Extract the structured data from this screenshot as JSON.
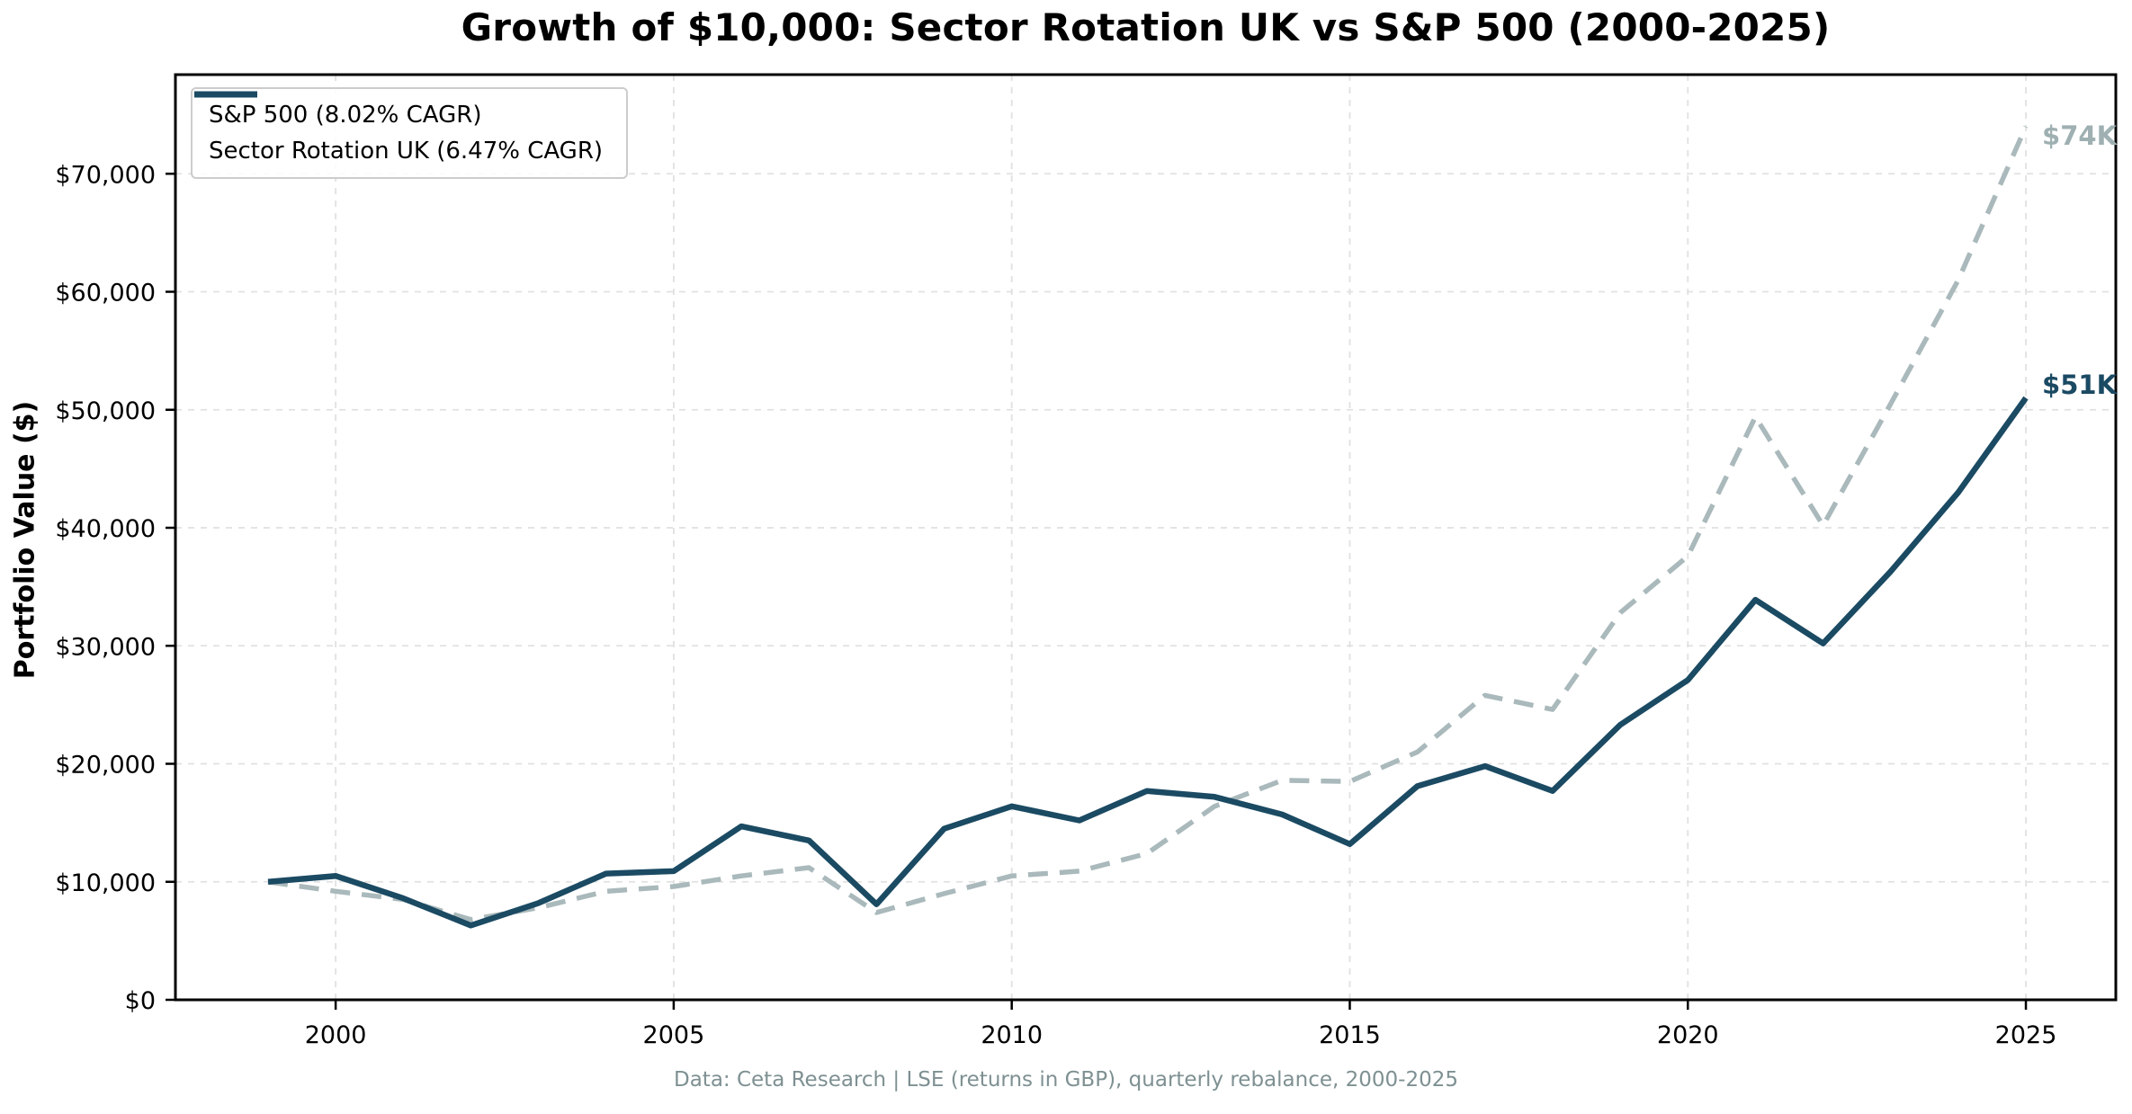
{
  "title": "Growth of $10,000: Sector Rotation UK vs S&P 500 (2000-2025)",
  "footer": {
    "text": "Data: Ceta Research | LSE (returns in GBP), quarterly rebalance, 2000-2025"
  },
  "colors": {
    "sp500_line": "#aab9bb",
    "sector_line": "#1b4a63",
    "gridline": "#e1e1e1",
    "axis": "#000000",
    "sp500_end_label": "#9fb0b2",
    "sector_end_label": "#1b4a63",
    "footer_text": "#7e9092",
    "legend_border": "#cccccc"
  },
  "chart_data": {
    "type": "line",
    "title": "Growth of $10,000: Sector Rotation UK vs S&P 500 (2000-2025)",
    "xlabel": "",
    "ylabel": "Portfolio Value ($)",
    "x": [
      1999,
      2000,
      2001,
      2002,
      2003,
      2004,
      2005,
      2006,
      2007,
      2008,
      2009,
      2010,
      2011,
      2012,
      2013,
      2014,
      2015,
      2016,
      2017,
      2018,
      2019,
      2020,
      2021,
      2022,
      2023,
      2024,
      2025
    ],
    "series": [
      {
        "name": "S&P 500 (8.02% CAGR)",
        "dash": true,
        "end_label": "$74K",
        "values": [
          10000,
          9200,
          8500,
          6800,
          7800,
          9200,
          9600,
          10500,
          11200,
          7400,
          9000,
          10500,
          10900,
          12400,
          16400,
          18600,
          18500,
          21000,
          25800,
          24600,
          32800,
          37600,
          49400,
          40200,
          50500,
          61000,
          74000
        ]
      },
      {
        "name": "Sector Rotation UK (6.47% CAGR)",
        "dash": false,
        "end_label": "$51K",
        "values": [
          10000,
          10500,
          8600,
          6300,
          8200,
          10700,
          10900,
          14700,
          13500,
          8100,
          14500,
          16400,
          15200,
          17700,
          17200,
          15700,
          13200,
          18100,
          19800,
          17700,
          23300,
          27100,
          33900,
          30200,
          36300,
          43000,
          51000
        ]
      }
    ],
    "x_ticks": [
      2000,
      2005,
      2010,
      2015,
      2020,
      2025
    ],
    "y_ticks": [
      0,
      10000,
      20000,
      30000,
      40000,
      50000,
      60000,
      70000
    ],
    "y_tick_labels": [
      "$0",
      "$10,000",
      "$20,000",
      "$30,000",
      "$40,000",
      "$50,000",
      "$60,000",
      "$70,000"
    ],
    "xlim": [
      1997.63,
      2026.33
    ],
    "ylim": [
      0,
      78400
    ],
    "grid": true,
    "legend_position": "upper left"
  }
}
